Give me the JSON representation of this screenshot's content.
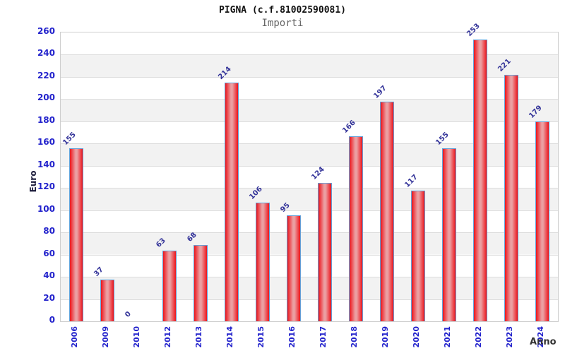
{
  "header": {
    "title": "PIGNA (c.f.81002590081)",
    "subtitle": "Importi"
  },
  "chart_data": {
    "type": "bar",
    "title": "PIGNA (c.f.81002590081)",
    "subtitle": "Importi",
    "categories": [
      "2006",
      "2009",
      "2010",
      "2012",
      "2013",
      "2014",
      "2015",
      "2016",
      "2017",
      "2018",
      "2019",
      "2020",
      "2021",
      "2022",
      "2023",
      "2024"
    ],
    "values": [
      155,
      37,
      0,
      63,
      68,
      214,
      106,
      95,
      124,
      166,
      197,
      117,
      155,
      253,
      221,
      179
    ],
    "xlabel": "Anno",
    "ylabel": "Euro",
    "ylim": [
      0,
      260
    ],
    "ytick_step": 20,
    "grid": "horizontal gridlines with alternating white/gray bands",
    "legend_position": "none",
    "colors": {
      "bar_edge": "#e8151b",
      "bar_center": "#eb9fa2",
      "bar_border": "#64a0d8",
      "axis_tick_label": "#2323cc",
      "value_label": "#333399",
      "band_gray": "#f2f2f2",
      "gridline": "#dcdcdc",
      "title": "#111111",
      "subtitle": "#666666"
    }
  }
}
